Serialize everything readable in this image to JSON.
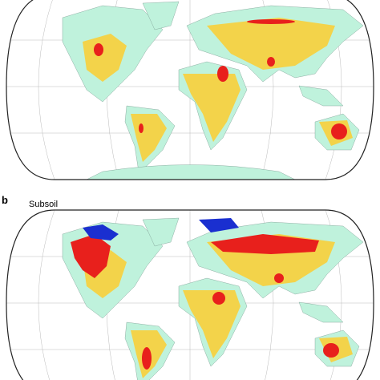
{
  "panels": [
    {
      "label": "b",
      "title": "Subsoil"
    }
  ]
}
